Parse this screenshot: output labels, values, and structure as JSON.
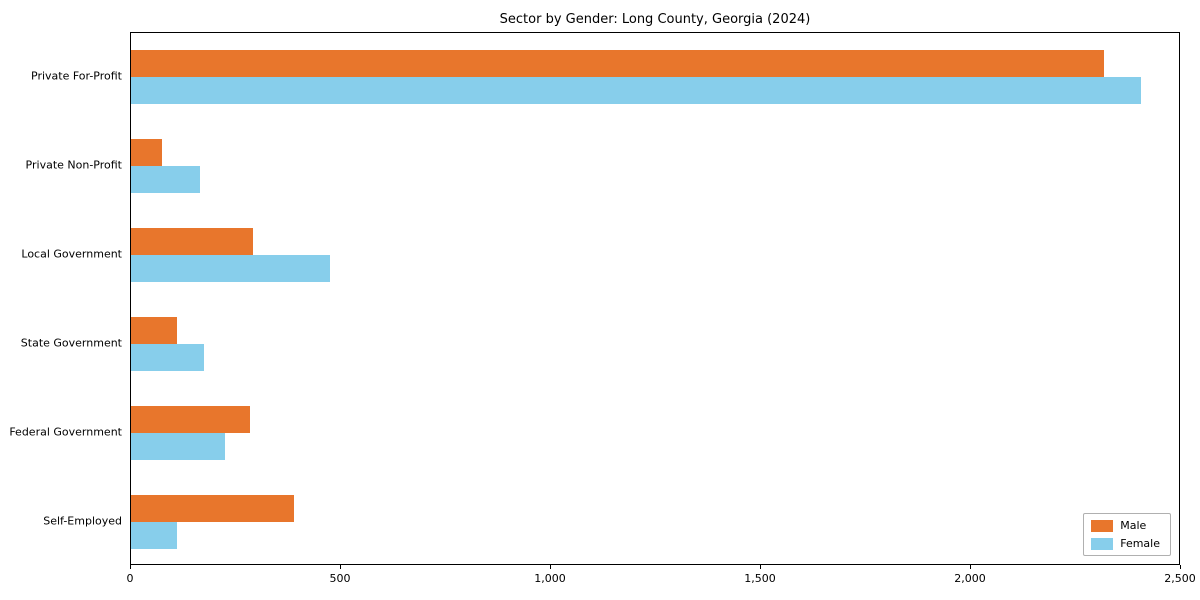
{
  "chart_data": {
    "type": "bar",
    "orientation": "horizontal",
    "title": "Sector by Gender: Long County, Georgia (2024)",
    "categories": [
      "Private For-Profit",
      "Private Non-Profit",
      "Local Government",
      "State Government",
      "Federal Government",
      "Self-Employed"
    ],
    "series": [
      {
        "name": "Male",
        "color": "#e8762c",
        "values": [
          2320,
          75,
          290,
          110,
          285,
          390
        ]
      },
      {
        "name": "Female",
        "color": "#87ceeb",
        "values": [
          2410,
          165,
          475,
          175,
          225,
          110
        ]
      }
    ],
    "xlabel": "",
    "ylabel": "",
    "xlim": [
      0,
      2500
    ],
    "xticks": [
      0,
      500,
      1000,
      1500,
      2000,
      2500
    ],
    "xtick_labels": [
      "0",
      "500",
      "1,000",
      "1,500",
      "2,000",
      "2,500"
    ],
    "legend_position": "lower right",
    "grid": false
  }
}
